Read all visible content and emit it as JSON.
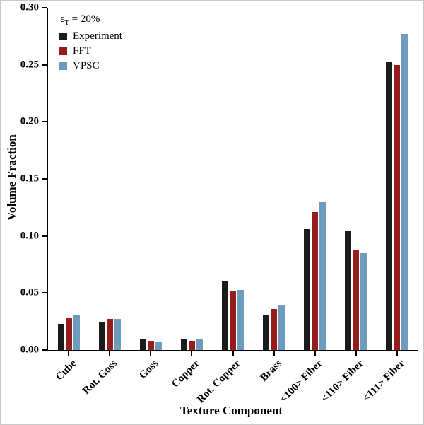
{
  "chart_data": {
    "type": "bar",
    "title": "",
    "annotation": {
      "epsilon": "ε",
      "sub": "T",
      "rest": " = 20%"
    },
    "xlabel": "Texture Component",
    "ylabel": "Volume Fraction",
    "categories": [
      "Cube",
      "Rot. Goss",
      "Goss",
      "Copper",
      "Rot. Copper",
      "Brass",
      "<100> Fiber",
      "<110> Fiber",
      "<111> Fiber"
    ],
    "series": [
      {
        "name": "Experiment",
        "color": "#1b1b1b",
        "values": [
          0.023,
          0.024,
          0.01,
          0.01,
          0.06,
          0.031,
          0.106,
          0.104,
          0.253
        ]
      },
      {
        "name": "FFT",
        "color": "#971c1c",
        "values": [
          0.028,
          0.027,
          0.008,
          0.008,
          0.052,
          0.036,
          0.121,
          0.088,
          0.25
        ]
      },
      {
        "name": "VPSC",
        "color": "#6d9cbd",
        "values": [
          0.031,
          0.027,
          0.007,
          0.009,
          0.053,
          0.039,
          0.13,
          0.085,
          0.277
        ]
      }
    ],
    "ylim": [
      0,
      0.3
    ],
    "yticks": [
      "0.00",
      "0.05",
      "0.10",
      "0.15",
      "0.20",
      "0.25",
      "0.30"
    ],
    "grid": false,
    "legend_position": "top-left"
  }
}
